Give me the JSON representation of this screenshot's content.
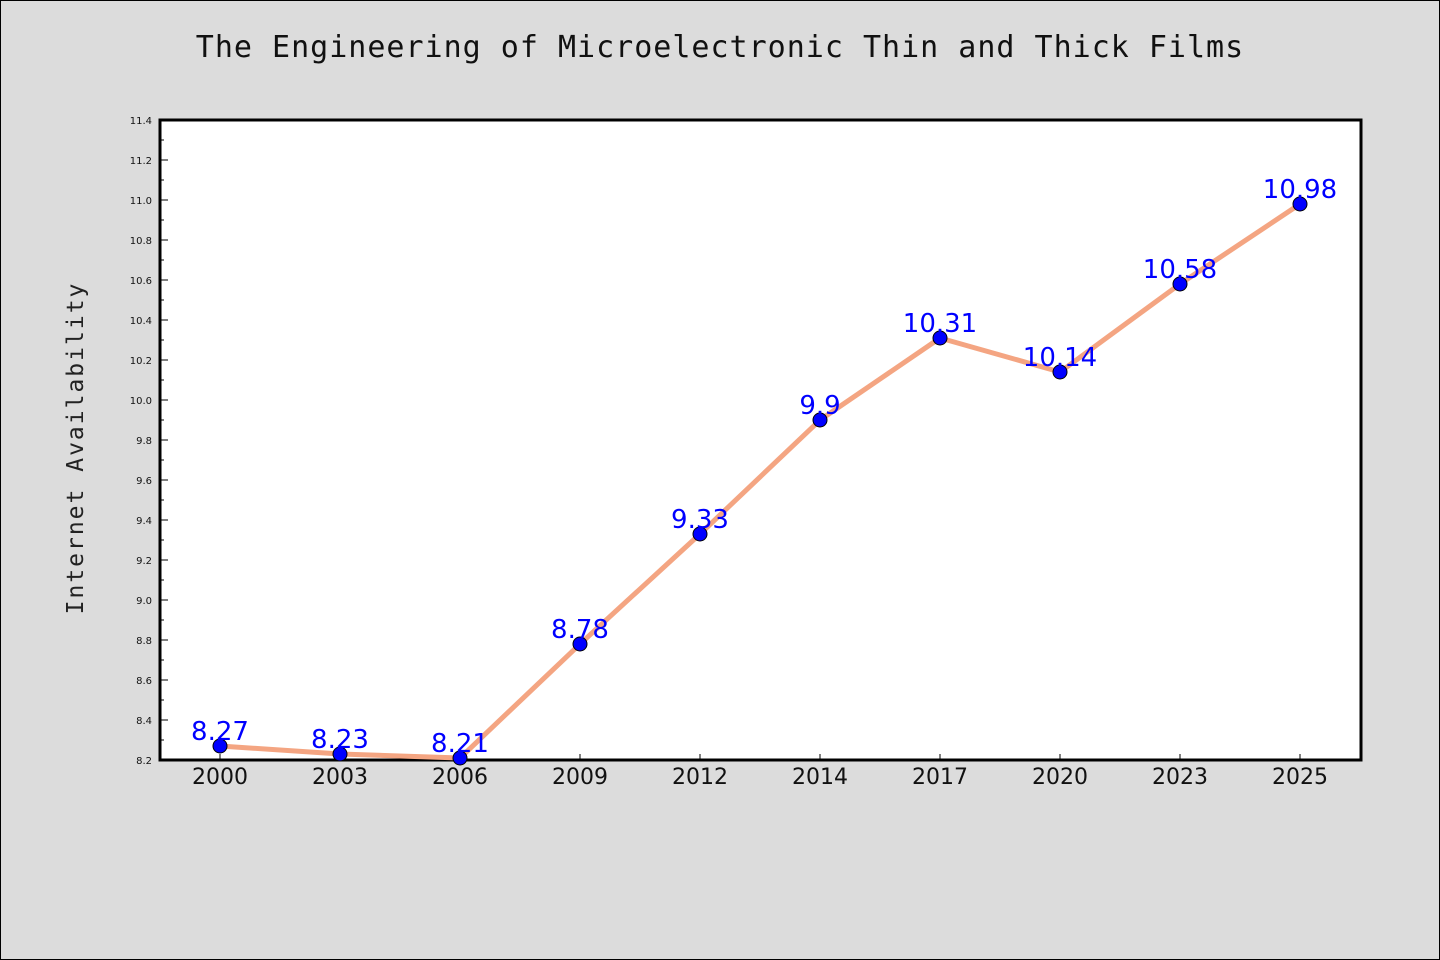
{
  "chart_data": {
    "type": "line",
    "title": "The Engineering of Microelectronic Thin and Thick Films",
    "xlabel": "",
    "ylabel": "Internet Availability",
    "categories": [
      "2000",
      "2003",
      "2006",
      "2009",
      "2012",
      "2014",
      "2017",
      "2020",
      "2023",
      "2025"
    ],
    "series": [
      {
        "values": [
          8.27,
          8.23,
          8.21,
          8.78,
          9.33,
          9.9,
          10.31,
          10.14,
          10.58,
          10.98
        ],
        "data_labels": [
          "8.27",
          "8.23",
          "8.21",
          "8.78",
          "9.33",
          "9.9",
          "10.31",
          "10.14",
          "10.58",
          "10.98"
        ]
      }
    ],
    "ylim": [
      8.2,
      11.4
    ],
    "yticks": [
      "8.2",
      "8.4",
      "8.6",
      "8.8",
      "9.0",
      "9.2",
      "9.4",
      "9.6",
      "9.8",
      "10.0",
      "10.2",
      "10.4",
      "10.6",
      "10.8",
      "11.0",
      "11.2",
      "11.4"
    ],
    "grid": false,
    "colors": {
      "line": "#f4a582",
      "marker": "#0000ff",
      "data_label": "#0000ff",
      "background": "#dcdcdc",
      "plot_area": "#ffffff"
    }
  }
}
